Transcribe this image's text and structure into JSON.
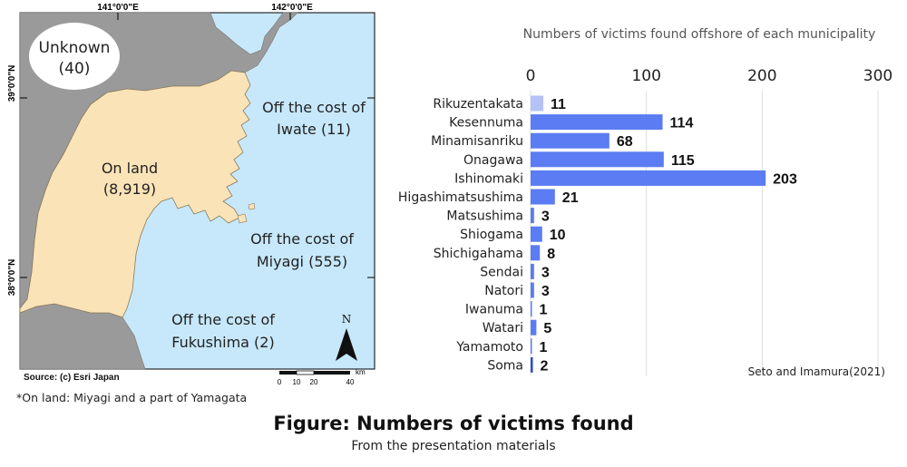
{
  "map": {
    "lon_labels": [
      "141°0'0\"E",
      "142°0'0\"E"
    ],
    "lat_labels": [
      "39°0'0\"N",
      "38°0'0\"N"
    ],
    "regions": {
      "unknown": {
        "name": "Unknown",
        "count": "(40)"
      },
      "on_land": {
        "name": "On land",
        "count": "(8,919)"
      },
      "iwate": {
        "line1": "Off the cost of",
        "line2": "Iwate (11)"
      },
      "miyagi": {
        "line1": "Off the cost of",
        "line2": "Miyagi (555)"
      },
      "fukushima": {
        "line1": "Off the cost of",
        "line2": "Fukushima (2)"
      }
    },
    "north_label": "N",
    "source": "Source: (c) Esri Japan",
    "scale": {
      "ticks": [
        "0",
        "10",
        "20",
        "40"
      ],
      "unit": "km"
    },
    "colors": {
      "sea": "#c7e8fb",
      "land_gray": "#9a9a9a",
      "miyagi": "#fbe3b8"
    }
  },
  "footnote": "*On land: Miyagi and a part of Yamagata",
  "figure": {
    "title": "Figure: Numbers of victims found",
    "subtitle": "From the presentation materials"
  },
  "chart_data": {
    "type": "bar",
    "orientation": "horizontal",
    "title": "Numbers of victims found offshore of each municipality",
    "credit": "Seto and Imamura(2021)",
    "categories": [
      "Rikuzentakata",
      "Kesennuma",
      "Minamisanriku",
      "Onagawa",
      "Ishinomaki",
      "Higashimatsushima",
      "Matsushima",
      "Shiogama",
      "Shichigahama",
      "Sendai",
      "Natori",
      "Iwanuma",
      "Watari",
      "Yamamoto",
      "Soma"
    ],
    "values": [
      11,
      114,
      68,
      115,
      203,
      21,
      3,
      10,
      8,
      3,
      3,
      1,
      5,
      1,
      2
    ],
    "xlim": [
      0,
      300
    ],
    "xticks": [
      0,
      100,
      200,
      300
    ],
    "axis_position": "top",
    "grid": "vertical",
    "colors": {
      "bar": "#5b7cf2",
      "first_bar": "#b4c2f7",
      "last_bar": "#2e4fc4",
      "grid": "#dddddd",
      "title": "#555555"
    }
  }
}
